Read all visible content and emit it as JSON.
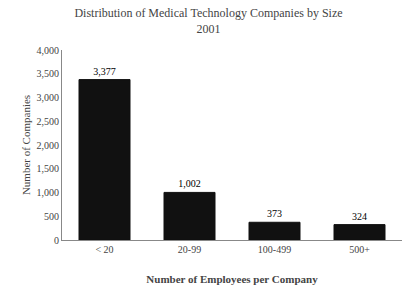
{
  "chart_data": {
    "type": "bar",
    "title": "Distribution of Medical Technology Companies by Size",
    "subtitle": "2001",
    "categories": [
      "< 20",
      "20-99",
      "100-499",
      "500+"
    ],
    "values": [
      3377,
      1002,
      373,
      324
    ],
    "value_labels": [
      "3,377",
      "1,002",
      "373",
      "324"
    ],
    "data_labels": true,
    "color": "#111111",
    "xlabel": "Number of Employees per Company",
    "ylabel": "Number of Companies",
    "ylim": [
      0,
      4000
    ],
    "yticks": [
      0,
      500,
      {
        "value": 1000,
        "label": "1,000"
      },
      {
        "value": 1500,
        "label": "1,500"
      },
      {
        "value": 2000,
        "label": "2,000"
      },
      {
        "value": 2500,
        "label": "2,500"
      },
      {
        "value": 3000,
        "label": "3,000"
      },
      {
        "value": 3500,
        "label": "3,500"
      },
      {
        "value": 4000,
        "label": "4,000"
      }
    ],
    "grid": false
  }
}
